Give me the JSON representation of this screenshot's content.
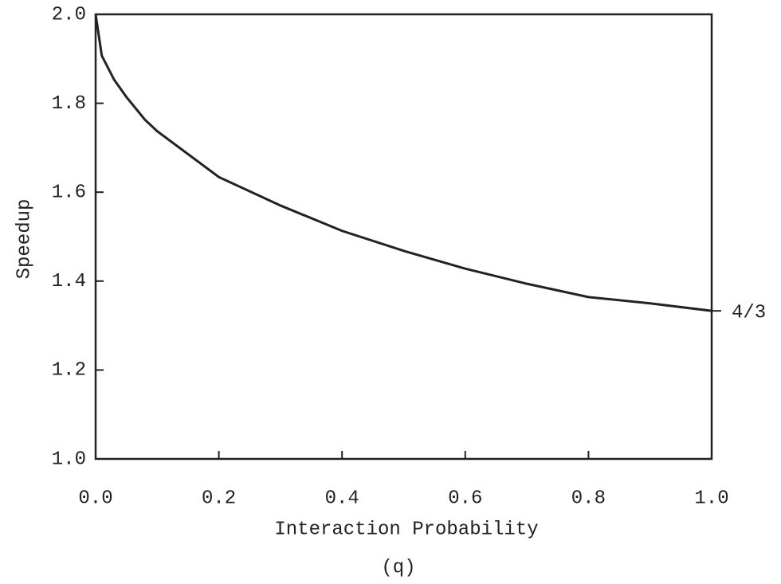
{
  "chart_data": {
    "type": "line",
    "ylabel": "Speedup",
    "xlabel": "Interaction Probability",
    "xlabel_sub": "(q)",
    "x": [
      0,
      0.01,
      0.03,
      0.05,
      0.08,
      0.1,
      0.2,
      0.3,
      0.4,
      0.5,
      0.6,
      0.7,
      0.8,
      0.9,
      1.0
    ],
    "series": [
      {
        "color": "#222222",
        "values": [
          2.0,
          1.907,
          1.853,
          1.814,
          1.763,
          1.737,
          1.634,
          1.57,
          1.513,
          1.468,
          1.428,
          1.394,
          1.364,
          1.35,
          1.333
        ]
      }
    ],
    "xlim": [
      0,
      1
    ],
    "ylim": [
      1,
      2
    ],
    "xticks": [
      {
        "value": 0,
        "label": "0.0"
      },
      0.2,
      0.4,
      0.6,
      0.8,
      {
        "value": 1,
        "label": "1.0"
      }
    ],
    "yticks": [
      {
        "value": 1,
        "label": "1.0"
      },
      1.2,
      1.4,
      1.6,
      1.8,
      {
        "value": 2,
        "label": "2.0"
      }
    ],
    "annotations": [
      {
        "text": "4/3",
        "y": 1.333
      }
    ]
  }
}
